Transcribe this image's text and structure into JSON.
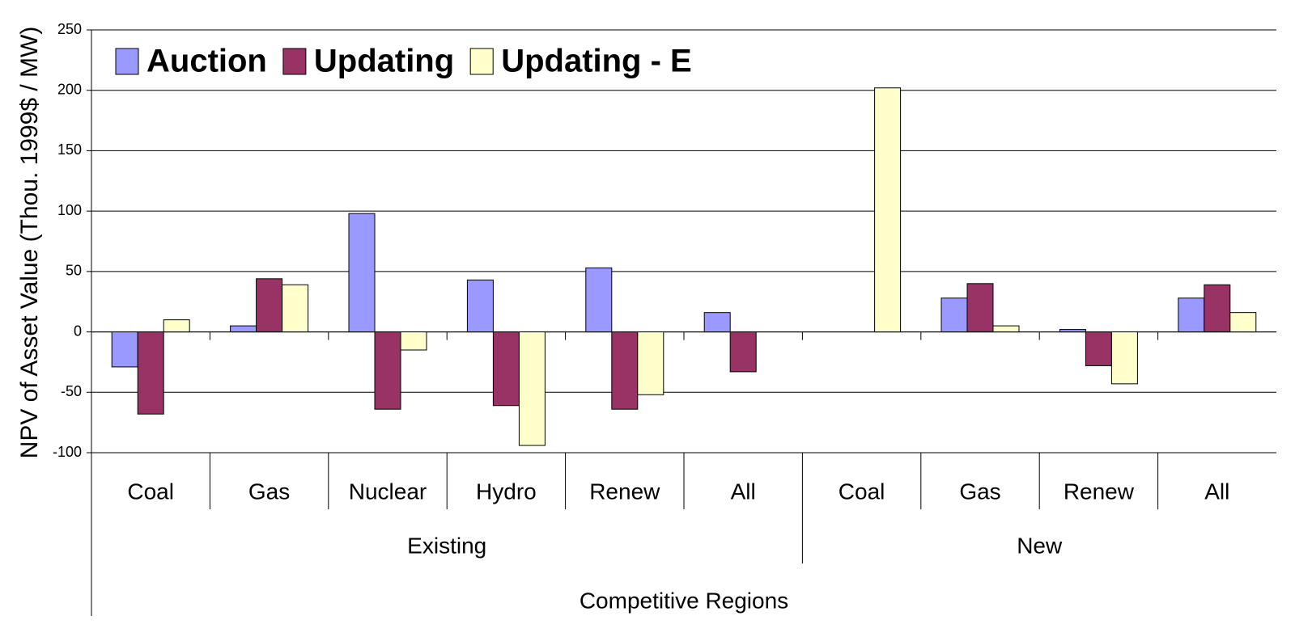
{
  "chart_data": {
    "type": "bar",
    "y_label": "NPV of Asset Value (Thou. 1999$ / MW)",
    "x_label": "Competitive Regions",
    "groups": [
      {
        "name": "Existing",
        "categories": [
          "Coal",
          "Gas",
          "Nuclear",
          "Hydro",
          "Renew",
          "All"
        ]
      },
      {
        "name": "New",
        "categories": [
          "Coal",
          "Gas",
          "Renew",
          "All"
        ]
      }
    ],
    "series": [
      {
        "name": "Auction",
        "color": "#9999ff",
        "values": [
          -29,
          5,
          98,
          43,
          53,
          16,
          null,
          28,
          2,
          28
        ]
      },
      {
        "name": "Updating",
        "color": "#993366",
        "values": [
          -68,
          44,
          -64,
          -61,
          -64,
          -33,
          null,
          40,
          -28,
          39
        ]
      },
      {
        "name": "Updating - E",
        "color": "#ffffcc",
        "values": [
          10,
          39,
          -15,
          -94,
          -52,
          null,
          202,
          5,
          -43,
          16
        ]
      }
    ],
    "ylim": [
      -100,
      250
    ],
    "yticks": [
      -100,
      -50,
      0,
      50,
      100,
      150,
      200,
      250
    ],
    "grid": true,
    "legend": "top-left"
  }
}
